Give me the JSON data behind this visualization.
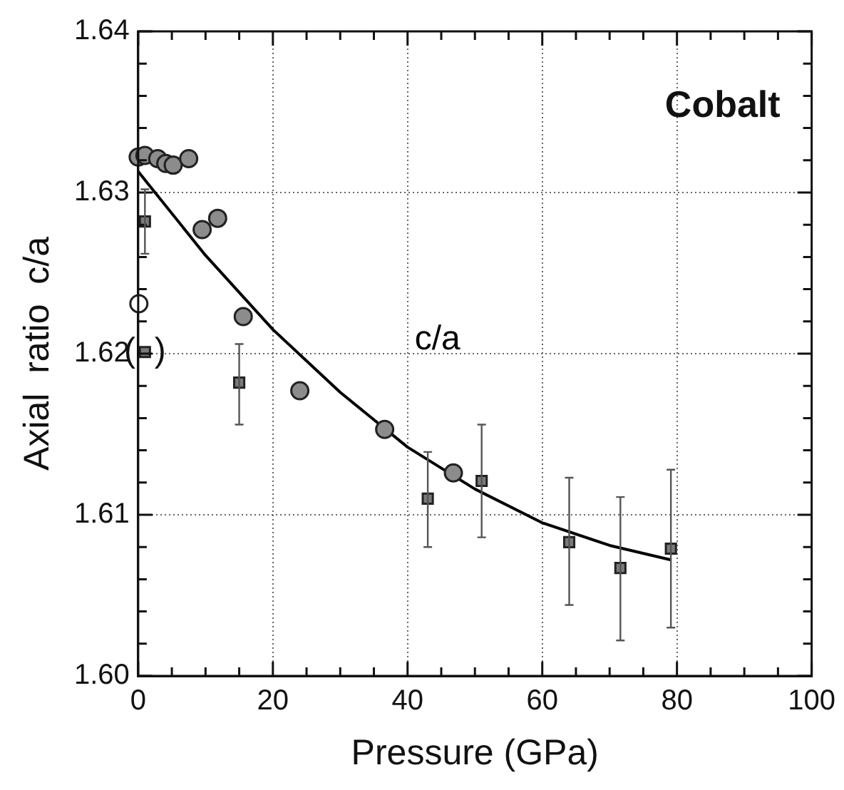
{
  "chart_data": {
    "type": "scatter",
    "xlabel": "Pressure (GPa)",
    "ylabel": "Axial  ratio  c/a",
    "xlim": [
      0,
      100
    ],
    "ylim": [
      1.6,
      1.64
    ],
    "xticks": [
      0,
      {
        "value": 5,
        "label": null
      },
      {
        "value": 10,
        "label": null
      },
      {
        "value": 15,
        "label": null
      },
      20,
      {
        "value": 25,
        "label": null
      },
      {
        "value": 30,
        "label": null
      },
      {
        "value": 35,
        "label": null
      },
      40,
      {
        "value": 45,
        "label": null
      },
      {
        "value": 50,
        "label": null
      },
      {
        "value": 55,
        "label": null
      },
      60,
      {
        "value": 65,
        "label": null
      },
      {
        "value": 70,
        "label": null
      },
      {
        "value": 75,
        "label": null
      },
      80,
      {
        "value": 85,
        "label": null
      },
      {
        "value": 90,
        "label": null
      },
      {
        "value": 95,
        "label": null
      },
      100
    ],
    "yticks": [
      {
        "value": 1.6,
        "label": "1.60"
      },
      {
        "value": 1.602,
        "label": null
      },
      {
        "value": 1.604,
        "label": null
      },
      {
        "value": 1.606,
        "label": null
      },
      {
        "value": 1.608,
        "label": null
      },
      {
        "value": 1.61,
        "label": "1.61"
      },
      {
        "value": 1.612,
        "label": null
      },
      {
        "value": 1.614,
        "label": null
      },
      {
        "value": 1.616,
        "label": null
      },
      {
        "value": 1.618,
        "label": null
      },
      {
        "value": 1.62,
        "label": "1.62"
      },
      {
        "value": 1.622,
        "label": null
      },
      {
        "value": 1.624,
        "label": null
      },
      {
        "value": 1.626,
        "label": null
      },
      {
        "value": 1.628,
        "label": null
      },
      {
        "value": 1.63,
        "label": "1.63"
      },
      {
        "value": 1.632,
        "label": null
      },
      {
        "value": 1.634,
        "label": null
      },
      {
        "value": 1.636,
        "label": null
      },
      {
        "value": 1.638,
        "label": null
      },
      {
        "value": 1.64,
        "label": "1.64"
      }
    ],
    "grid": true,
    "legend": false,
    "series": [
      {
        "type": "scatter",
        "marker": "circle",
        "color": "#8c8c8c",
        "x": [
          0,
          1,
          2.9,
          4.1,
          5.2,
          7.5,
          9.5,
          11.8,
          15.6,
          24,
          36.6,
          46.8
        ],
        "values": [
          1.6322,
          1.6323,
          1.6321,
          1.6318,
          1.6317,
          1.6321,
          1.6277,
          1.6284,
          1.6223,
          1.6177,
          1.6153,
          1.6126
        ]
      },
      {
        "type": "scatter",
        "marker": "circle",
        "color": "#ffffff",
        "x": [
          0.1
        ],
        "values": [
          1.6231
        ]
      },
      {
        "type": "scatter",
        "marker": "square",
        "color": "#7a7a7a",
        "x": [
          1,
          1,
          15,
          43,
          51,
          64,
          71.6,
          79.1
        ],
        "values": [
          1.6282,
          1.6201,
          1.6182,
          1.611,
          1.6121,
          1.6083,
          1.6067,
          1.6079
        ],
        "errors": [
          [
            1.6262,
            1.6302
          ],
          null,
          [
            1.6156,
            1.6206
          ],
          [
            1.608,
            1.6139
          ],
          [
            1.6086,
            1.6156
          ],
          [
            1.6044,
            1.6123
          ],
          [
            1.6022,
            1.6111
          ],
          [
            1.603,
            1.6128
          ]
        ]
      },
      {
        "type": "line",
        "name": "c/a",
        "marker": "none",
        "color": "#000000",
        "x": [
          0,
          10,
          20,
          30,
          40,
          50,
          60,
          70,
          79.1
        ],
        "values": [
          1.6313,
          1.6261,
          1.6215,
          1.6176,
          1.6142,
          1.6116,
          1.6095,
          1.6081,
          1.6072
        ]
      }
    ],
    "annotations": [
      "Cobalt",
      "(  )"
    ]
  }
}
